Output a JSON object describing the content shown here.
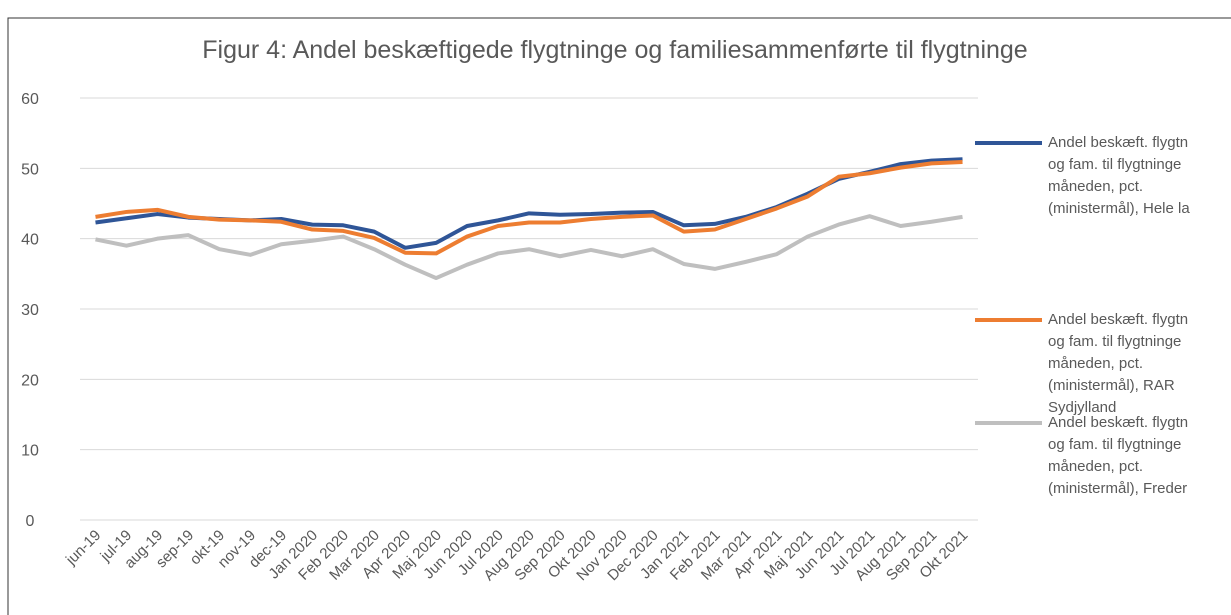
{
  "chart_data": {
    "type": "line",
    "title": "Figur 4: Andel beskæftigede flygtninge og familiesammenførte til flygtninge",
    "categories": [
      "jun-19",
      "jul-19",
      "aug-19",
      "sep-19",
      "okt-19",
      "nov-19",
      "dec-19",
      "Jan 2020",
      "Feb 2020",
      "Mar 2020",
      "Apr 2020",
      "Maj 2020",
      "Jun 2020",
      "Jul 2020",
      "Aug 2020",
      "Sep 2020",
      "Okt 2020",
      "Nov 2020",
      "Dec 2020",
      "Jan 2021",
      "Feb 2021",
      "Mar 2021",
      "Apr 2021",
      "Maj 2021",
      "Jun 2021",
      "Jul 2021",
      "Aug 2021",
      "Sep 2021",
      "Okt 2021"
    ],
    "series": [
      {
        "name": "Andel beskæft. flygtn\nog fam. til flygtninge\nmåneden, pct.\n(ministermål), Hele la",
        "color": "#2f5597",
        "values": [
          42.3,
          42.9,
          43.5,
          43.0,
          42.8,
          42.6,
          42.8,
          42.0,
          41.9,
          41.0,
          38.7,
          39.4,
          41.8,
          42.6,
          43.6,
          43.4,
          43.5,
          43.7,
          43.8,
          41.9,
          42.1,
          43.1,
          44.5,
          46.4,
          48.5,
          49.5,
          50.6,
          51.1,
          51.3
        ]
      },
      {
        "name": "Andel beskæft. flygtn\nog fam. til flygtninge\nmåneden, pct.\n(ministermål), RAR\nSydjylland",
        "color": "#ed7d31",
        "values": [
          43.1,
          43.8,
          44.1,
          43.1,
          42.7,
          42.6,
          42.4,
          41.3,
          41.1,
          40.1,
          38.0,
          37.9,
          40.3,
          41.8,
          42.3,
          42.3,
          42.8,
          43.1,
          43.3,
          41.0,
          41.3,
          42.8,
          44.3,
          46.0,
          48.8,
          49.3,
          50.1,
          50.7,
          50.9
        ]
      },
      {
        "name": "Andel beskæft. flygtn\nog fam. til flygtninge\nmåneden, pct.\n(ministermål), Freder",
        "color": "#bfbfbf",
        "values": [
          39.9,
          39.0,
          40.0,
          40.5,
          38.5,
          37.7,
          39.2,
          39.7,
          40.3,
          38.5,
          36.3,
          34.4,
          36.3,
          37.9,
          38.5,
          37.5,
          38.4,
          37.5,
          38.5,
          36.4,
          35.7,
          36.7,
          37.8,
          40.3,
          42.0,
          43.2,
          41.8,
          42.4,
          43.1
        ]
      }
    ],
    "ylim": [
      0,
      60
    ],
    "yticks": [
      0,
      10,
      20,
      30,
      40,
      50,
      60
    ],
    "grid": true
  }
}
